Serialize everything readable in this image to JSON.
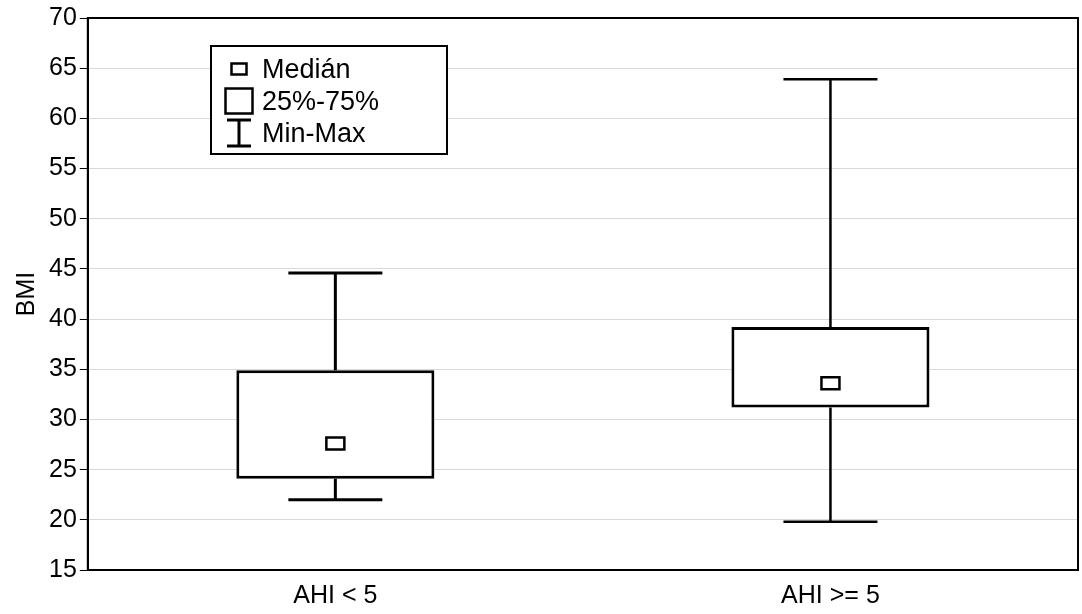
{
  "chart_data": {
    "type": "box",
    "ylabel": "BMI",
    "categories": [
      "AHI < 5",
      "AHI >= 5"
    ],
    "boxes": [
      {
        "low": 22.0,
        "q1": 24.1,
        "median": 27.6,
        "q3": 34.9,
        "high": 44.6
      },
      {
        "low": 19.8,
        "q1": 31.2,
        "median": 33.6,
        "q3": 39.2,
        "high": 63.9
      }
    ],
    "ylim": [
      15,
      70
    ],
    "yticks": [
      15,
      20,
      25,
      30,
      35,
      40,
      45,
      50,
      55,
      60,
      65,
      70
    ],
    "grid": "y",
    "annotations": [
      "Medián",
      "25%-75%",
      "Min-Max"
    ]
  }
}
